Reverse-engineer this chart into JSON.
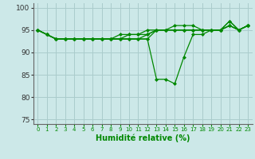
{
  "title": "",
  "xlabel": "Humidité relative (%)",
  "ylabel": "",
  "background_color": "#cce8e8",
  "grid_color": "#aacccc",
  "line_color": "#008800",
  "ylim": [
    74,
    101
  ],
  "xlim": [
    -0.5,
    23.5
  ],
  "yticks": [
    75,
    80,
    85,
    90,
    95,
    100
  ],
  "xticks": [
    0,
    1,
    2,
    3,
    4,
    5,
    6,
    7,
    8,
    9,
    10,
    11,
    12,
    13,
    14,
    15,
    16,
    17,
    18,
    19,
    20,
    21,
    22,
    23
  ],
  "series": [
    [
      95,
      94,
      93,
      93,
      93,
      93,
      93,
      93,
      93,
      93,
      93,
      93,
      93,
      84,
      84,
      83,
      89,
      94,
      94,
      95,
      95,
      97,
      95,
      96
    ],
    [
      95,
      94,
      93,
      93,
      93,
      93,
      93,
      93,
      93,
      93,
      94,
      94,
      95,
      95,
      95,
      95,
      95,
      95,
      95,
      95,
      95,
      97,
      95,
      96
    ],
    [
      95,
      94,
      93,
      93,
      93,
      93,
      93,
      93,
      93,
      94,
      94,
      94,
      94,
      95,
      95,
      95,
      95,
      95,
      95,
      95,
      95,
      96,
      95,
      96
    ],
    [
      95,
      94,
      93,
      93,
      93,
      93,
      93,
      93,
      93,
      93,
      93,
      93,
      94,
      95,
      95,
      95,
      95,
      95,
      95,
      95,
      95,
      96,
      95,
      96
    ],
    [
      95,
      94,
      93,
      93,
      93,
      93,
      93,
      93,
      93,
      93,
      93,
      93,
      93,
      95,
      95,
      96,
      96,
      96,
      95,
      95,
      95,
      96,
      95,
      96
    ]
  ]
}
